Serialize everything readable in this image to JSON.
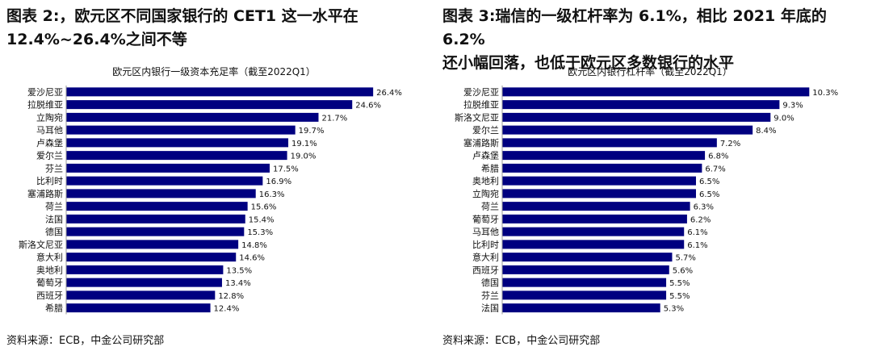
{
  "left": {
    "title_line1": "图表 2:，欧元区不同国家银行的 CET1 这一水平在",
    "title_line2": "12.4%~26.4%之间不等",
    "source": "资料来源：ECB，中金公司研究部",
    "chart_data": {
      "type": "bar",
      "orientation": "horizontal",
      "title": "欧元区内银行一级资本充足率（截至2022Q1）",
      "categories": [
        "爱沙尼亚",
        "拉脱维亚",
        "立陶宛",
        "马耳他",
        "卢森堡",
        "爱尔兰",
        "芬兰",
        "比利时",
        "塞浦路斯",
        "荷兰",
        "法国",
        "德国",
        "斯洛文尼亚",
        "意大利",
        "奥地利",
        "葡萄牙",
        "西班牙",
        "希腊"
      ],
      "values": [
        26.4,
        24.6,
        21.7,
        19.7,
        19.1,
        19.0,
        17.5,
        16.9,
        16.3,
        15.6,
        15.4,
        15.3,
        14.8,
        14.6,
        13.5,
        13.4,
        12.8,
        12.4
      ],
      "labels": [
        "26.4%",
        "24.6%",
        "21.7%",
        "19.7%",
        "19.1%",
        "19.0%",
        "17.5%",
        "16.9%",
        "16.3%",
        "15.6%",
        "15.4%",
        "15.3%",
        "14.8%",
        "14.6%",
        "13.5%",
        "13.4%",
        "12.8%",
        "12.4%"
      ],
      "xlim": [
        0,
        30
      ],
      "bar_color": "#000080",
      "grid": false
    }
  },
  "right": {
    "title_line1": "图表 3:瑞信的一级杠杆率为 6.1%，相比 2021 年底的 6.2%",
    "title_line2": "还小幅回落，也低于欧元区多数银行的水平",
    "source": "资料来源：ECB，中金公司研究部",
    "chart_data": {
      "type": "bar",
      "orientation": "horizontal",
      "title": "欧元区内银行杠杆率（截至2022Q1）",
      "categories": [
        "爱沙尼亚",
        "拉脱维亚",
        "斯洛文尼亚",
        "爱尔兰",
        "塞浦路斯",
        "卢森堡",
        "希腊",
        "奥地利",
        "立陶宛",
        "荷兰",
        "葡萄牙",
        "马耳他",
        "比利时",
        "意大利",
        "西班牙",
        "德国",
        "芬兰",
        "法国"
      ],
      "values": [
        10.3,
        9.3,
        9.0,
        8.4,
        7.2,
        6.8,
        6.7,
        6.5,
        6.5,
        6.3,
        6.2,
        6.1,
        6.1,
        5.7,
        5.6,
        5.5,
        5.5,
        5.3
      ],
      "labels": [
        "10.3%",
        "9.3%",
        "9.0%",
        "8.4%",
        "7.2%",
        "6.8%",
        "6.7%",
        "6.5%",
        "6.5%",
        "6.3%",
        "6.2%",
        "6.1%",
        "6.1%",
        "5.7%",
        "5.6%",
        "5.5%",
        "5.5%",
        "5.3%"
      ],
      "xlim": [
        0,
        11.7
      ],
      "bar_color": "#000080",
      "grid": false
    }
  }
}
